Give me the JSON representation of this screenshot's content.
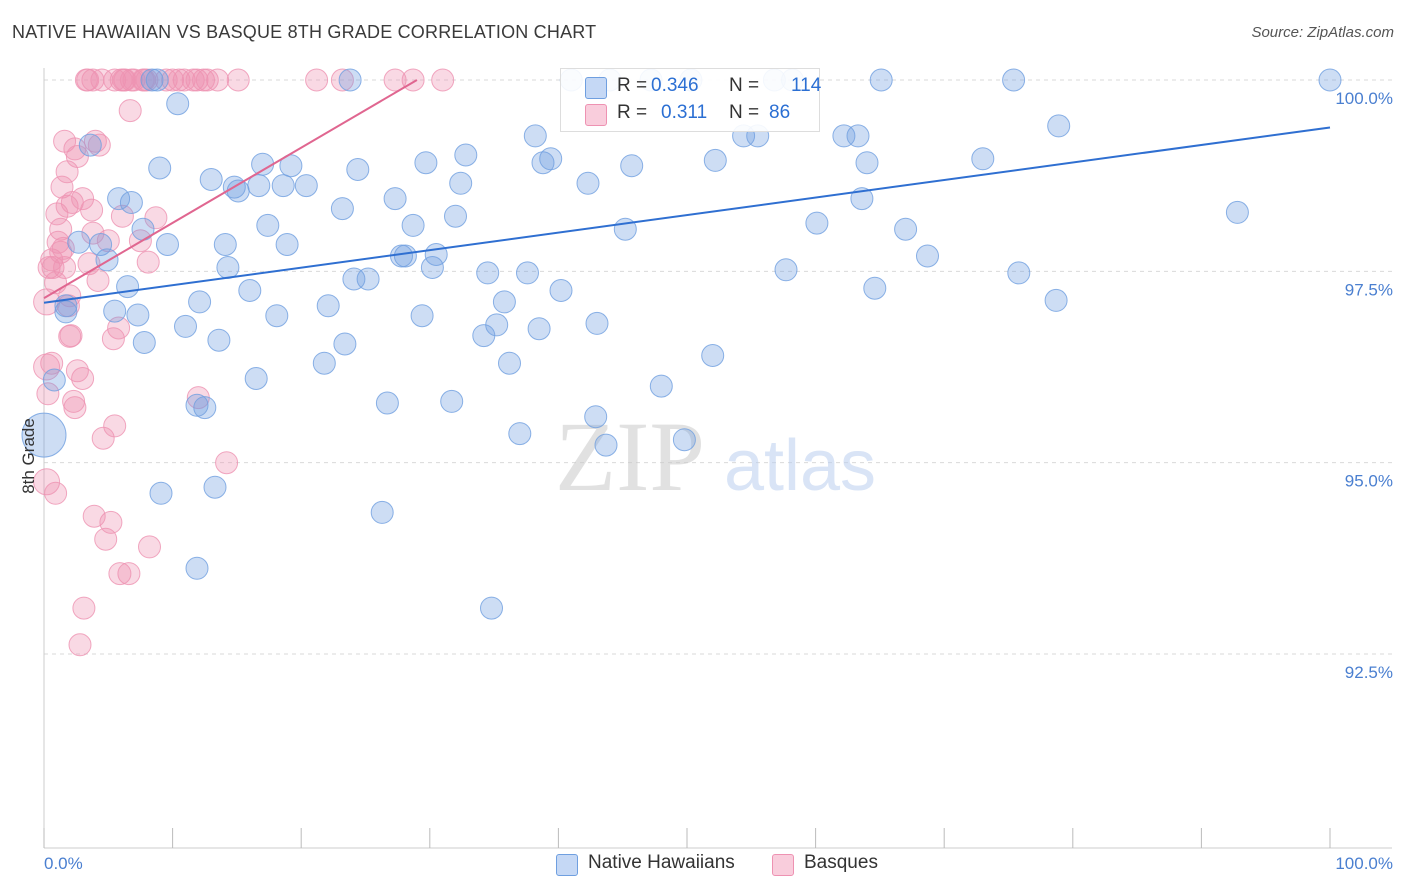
{
  "title": "NATIVE HAWAIIAN VS BASQUE 8TH GRADE CORRELATION CHART",
  "source": "Source: ZipAtlas.com",
  "watermark": {
    "zip": "ZIP",
    "atlas": "atlas"
  },
  "legend_top": {
    "rows": [
      {
        "r_label": "R =",
        "r_value": "0.346",
        "n_label": "N =",
        "n_value": "114"
      },
      {
        "r_label": "R =",
        "r_value": "0.311",
        "n_label": "N =",
        "n_value": "86"
      }
    ]
  },
  "chart_data": {
    "type": "scatter",
    "title": "NATIVE HAWAIIAN VS BASQUE 8TH GRADE CORRELATION CHART",
    "xlabel": "",
    "ylabel": "8th Grade",
    "xlim": [
      0,
      100
    ],
    "ylim": [
      90.0,
      100.3
    ],
    "x_tick_labels": [
      "0.0%",
      "100.0%"
    ],
    "y_ticks": [
      92.5,
      95.0,
      97.5,
      100.0
    ],
    "y_tick_labels": [
      "92.5%",
      "95.0%",
      "97.5%",
      "100.0%"
    ],
    "colors": {
      "blue": "#6f9fe0",
      "blue_line": "#2f6fd1",
      "pink": "#ee92b2",
      "pink_line": "#e06690",
      "axis_text": "#4a7fd0"
    },
    "series": [
      {
        "name": "Native Hawaiians",
        "r": 0.346,
        "n": 114,
        "trend": {
          "x1": 0.0,
          "y1": 97.09,
          "x2": 100.0,
          "y2": 99.38
        },
        "points": [
          [
            0.0,
            95.36,
            22
          ],
          [
            0.8,
            96.08,
            11
          ],
          [
            1.7,
            96.97,
            11
          ],
          [
            1.7,
            97.05,
            11
          ],
          [
            2.7,
            97.88,
            11
          ],
          [
            3.6,
            99.15,
            11
          ],
          [
            4.4,
            97.85,
            11
          ],
          [
            4.9,
            97.65,
            11
          ],
          [
            5.5,
            96.98,
            11
          ],
          [
            5.8,
            98.45,
            11
          ],
          [
            6.5,
            97.3,
            11
          ],
          [
            6.8,
            98.4,
            11
          ],
          [
            7.3,
            96.93,
            11
          ],
          [
            7.7,
            98.05,
            11
          ],
          [
            7.8,
            96.57,
            11
          ],
          [
            8.4,
            100.0,
            11
          ],
          [
            8.8,
            100.0,
            11
          ],
          [
            9.0,
            98.85,
            11
          ],
          [
            9.1,
            94.6,
            11
          ],
          [
            9.6,
            97.85,
            11
          ],
          [
            10.4,
            99.69,
            11
          ],
          [
            11.0,
            96.78,
            11
          ],
          [
            11.9,
            95.75,
            11
          ],
          [
            11.9,
            93.62,
            11
          ],
          [
            12.1,
            97.1,
            11
          ],
          [
            12.5,
            95.72,
            11
          ],
          [
            13.0,
            98.7,
            11
          ],
          [
            13.3,
            94.68,
            11
          ],
          [
            13.6,
            96.6,
            11
          ],
          [
            14.1,
            97.85,
            11
          ],
          [
            14.3,
            97.55,
            11
          ],
          [
            14.8,
            98.6,
            11
          ],
          [
            15.1,
            98.55,
            11
          ],
          [
            16.0,
            97.25,
            11
          ],
          [
            16.7,
            98.62,
            11
          ],
          [
            17.0,
            98.9,
            11
          ],
          [
            17.4,
            98.1,
            11
          ],
          [
            18.1,
            96.92,
            11
          ],
          [
            18.6,
            98.62,
            11
          ],
          [
            18.9,
            97.85,
            11
          ],
          [
            19.2,
            98.88,
            11
          ],
          [
            20.4,
            98.62,
            11
          ],
          [
            21.8,
            96.3,
            11
          ],
          [
            22.1,
            97.05,
            11
          ],
          [
            23.2,
            98.32,
            11
          ],
          [
            23.4,
            96.55,
            11
          ],
          [
            23.8,
            100.0,
            11
          ],
          [
            24.1,
            97.4,
            11
          ],
          [
            24.4,
            98.83,
            11
          ],
          [
            25.2,
            97.4,
            11
          ],
          [
            26.3,
            94.35,
            11
          ],
          [
            26.7,
            95.78,
            11
          ],
          [
            27.3,
            98.45,
            11
          ],
          [
            27.8,
            97.7,
            11
          ],
          [
            28.1,
            97.7,
            11
          ],
          [
            28.7,
            98.1,
            11
          ],
          [
            29.4,
            96.92,
            11
          ],
          [
            29.7,
            98.92,
            11
          ],
          [
            30.2,
            97.55,
            11
          ],
          [
            30.5,
            97.72,
            11
          ],
          [
            31.7,
            95.8,
            11
          ],
          [
            32.0,
            98.22,
            11
          ],
          [
            32.4,
            98.65,
            11
          ],
          [
            32.8,
            99.02,
            11
          ],
          [
            34.2,
            96.66,
            11
          ],
          [
            34.5,
            97.48,
            11
          ],
          [
            34.8,
            93.1,
            11
          ],
          [
            35.2,
            96.8,
            11
          ],
          [
            35.8,
            97.1,
            11
          ],
          [
            36.2,
            96.3,
            11
          ],
          [
            37.0,
            95.38,
            11
          ],
          [
            37.6,
            97.48,
            11
          ],
          [
            38.2,
            99.27,
            11
          ],
          [
            38.8,
            98.92,
            11
          ],
          [
            39.4,
            98.97,
            11
          ],
          [
            40.2,
            97.25,
            11
          ],
          [
            41.0,
            100.0,
            11
          ],
          [
            42.3,
            98.65,
            11
          ],
          [
            42.9,
            95.6,
            11
          ],
          [
            43.0,
            96.82,
            11
          ],
          [
            43.7,
            95.23,
            11
          ],
          [
            44.0,
            100.0,
            11
          ],
          [
            45.2,
            98.05,
            11
          ],
          [
            45.7,
            98.88,
            11
          ],
          [
            47.2,
            100.0,
            11
          ],
          [
            48.0,
            96.0,
            11
          ],
          [
            49.8,
            95.3,
            11
          ],
          [
            50.3,
            100.0,
            11
          ],
          [
            52.2,
            98.95,
            11
          ],
          [
            54.4,
            99.27,
            11
          ],
          [
            55.5,
            99.27,
            11
          ],
          [
            56.8,
            100.0,
            11
          ],
          [
            57.7,
            97.52,
            11
          ],
          [
            58.2,
            100.0,
            11
          ],
          [
            60.1,
            98.13,
            11
          ],
          [
            62.2,
            99.27,
            11
          ],
          [
            63.3,
            99.27,
            11
          ],
          [
            63.6,
            98.45,
            11
          ],
          [
            64.0,
            98.92,
            11
          ],
          [
            64.6,
            97.28,
            11
          ],
          [
            65.1,
            100.0,
            11
          ],
          [
            67.0,
            98.05,
            11
          ],
          [
            68.7,
            97.7,
            11
          ],
          [
            73.0,
            98.97,
            11
          ],
          [
            75.4,
            100.0,
            11
          ],
          [
            75.8,
            97.48,
            11
          ],
          [
            78.7,
            97.12,
            11
          ],
          [
            78.9,
            99.4,
            11
          ],
          [
            92.8,
            98.27,
            11
          ],
          [
            100.0,
            100.0,
            11
          ],
          [
            16.5,
            96.1,
            11
          ],
          [
            38.5,
            96.75,
            11
          ],
          [
            52.0,
            96.4,
            11
          ]
        ]
      },
      {
        "name": "Basques",
        "r": 0.311,
        "n": 86,
        "trend": {
          "x1": 0.0,
          "y1": 97.15,
          "x2": 29.0,
          "y2": 100.0
        },
        "points": [
          [
            0.2,
            97.1,
            13
          ],
          [
            0.2,
            96.25,
            13
          ],
          [
            0.2,
            94.75,
            13
          ],
          [
            0.3,
            95.9,
            11
          ],
          [
            0.4,
            97.55,
            11
          ],
          [
            0.6,
            96.3,
            11
          ],
          [
            0.6,
            97.65,
            11
          ],
          [
            0.7,
            97.55,
            11
          ],
          [
            0.9,
            97.35,
            11
          ],
          [
            0.9,
            94.6,
            11
          ],
          [
            1.0,
            98.25,
            11
          ],
          [
            1.1,
            97.88,
            11
          ],
          [
            1.3,
            97.75,
            11
          ],
          [
            1.3,
            98.05,
            11
          ],
          [
            1.4,
            98.6,
            11
          ],
          [
            1.5,
            97.8,
            11
          ],
          [
            1.6,
            99.2,
            11
          ],
          [
            1.6,
            97.55,
            11
          ],
          [
            1.8,
            98.35,
            11
          ],
          [
            1.8,
            98.8,
            11
          ],
          [
            1.9,
            97.05,
            11
          ],
          [
            2.0,
            97.18,
            11
          ],
          [
            2.0,
            96.65,
            11
          ],
          [
            2.1,
            96.66,
            11
          ],
          [
            2.2,
            98.4,
            11
          ],
          [
            2.3,
            95.8,
            11
          ],
          [
            2.4,
            95.72,
            11
          ],
          [
            2.4,
            99.1,
            11
          ],
          [
            2.6,
            99.0,
            11
          ],
          [
            2.6,
            96.2,
            11
          ],
          [
            2.8,
            92.62,
            11
          ],
          [
            3.0,
            98.45,
            11
          ],
          [
            3.0,
            96.1,
            11
          ],
          [
            3.1,
            93.1,
            11
          ],
          [
            3.3,
            100.0,
            11
          ],
          [
            3.4,
            100.0,
            11
          ],
          [
            3.5,
            97.6,
            11
          ],
          [
            3.7,
            98.3,
            11
          ],
          [
            3.8,
            98.0,
            11
          ],
          [
            3.8,
            100.0,
            11
          ],
          [
            3.9,
            94.3,
            11
          ],
          [
            4.0,
            99.2,
            11
          ],
          [
            4.2,
            97.38,
            11
          ],
          [
            4.3,
            99.15,
            11
          ],
          [
            4.5,
            100.0,
            11
          ],
          [
            4.6,
            95.32,
            11
          ],
          [
            4.8,
            94.0,
            11
          ],
          [
            5.0,
            97.9,
            11
          ],
          [
            5.2,
            94.22,
            11
          ],
          [
            5.4,
            96.62,
            11
          ],
          [
            5.5,
            100.0,
            11
          ],
          [
            5.5,
            95.48,
            11
          ],
          [
            5.8,
            96.76,
            11
          ],
          [
            5.9,
            93.55,
            11
          ],
          [
            6.0,
            100.0,
            11
          ],
          [
            6.1,
            98.22,
            11
          ],
          [
            6.2,
            100.0,
            11
          ],
          [
            6.3,
            100.0,
            11
          ],
          [
            6.6,
            93.55,
            11
          ],
          [
            6.7,
            99.6,
            11
          ],
          [
            6.8,
            100.0,
            11
          ],
          [
            7.0,
            100.0,
            11
          ],
          [
            7.5,
            97.9,
            11
          ],
          [
            7.7,
            100.0,
            11
          ],
          [
            7.8,
            100.0,
            11
          ],
          [
            8.0,
            100.0,
            11
          ],
          [
            8.1,
            97.62,
            11
          ],
          [
            8.2,
            93.9,
            11
          ],
          [
            8.7,
            98.2,
            11
          ],
          [
            9.5,
            100.0,
            11
          ],
          [
            10.0,
            100.0,
            11
          ],
          [
            10.5,
            100.0,
            11
          ],
          [
            10.9,
            100.0,
            11
          ],
          [
            11.6,
            100.0,
            11
          ],
          [
            11.9,
            100.0,
            11
          ],
          [
            12.0,
            95.85,
            11
          ],
          [
            12.4,
            100.0,
            11
          ],
          [
            12.7,
            100.0,
            11
          ],
          [
            13.5,
            100.0,
            11
          ],
          [
            14.2,
            95.0,
            11
          ],
          [
            15.1,
            100.0,
            11
          ],
          [
            21.2,
            100.0,
            11
          ],
          [
            23.2,
            100.0,
            11
          ],
          [
            27.3,
            100.0,
            11
          ],
          [
            28.7,
            100.0,
            11
          ],
          [
            31.0,
            100.0,
            11
          ]
        ]
      }
    ]
  }
}
